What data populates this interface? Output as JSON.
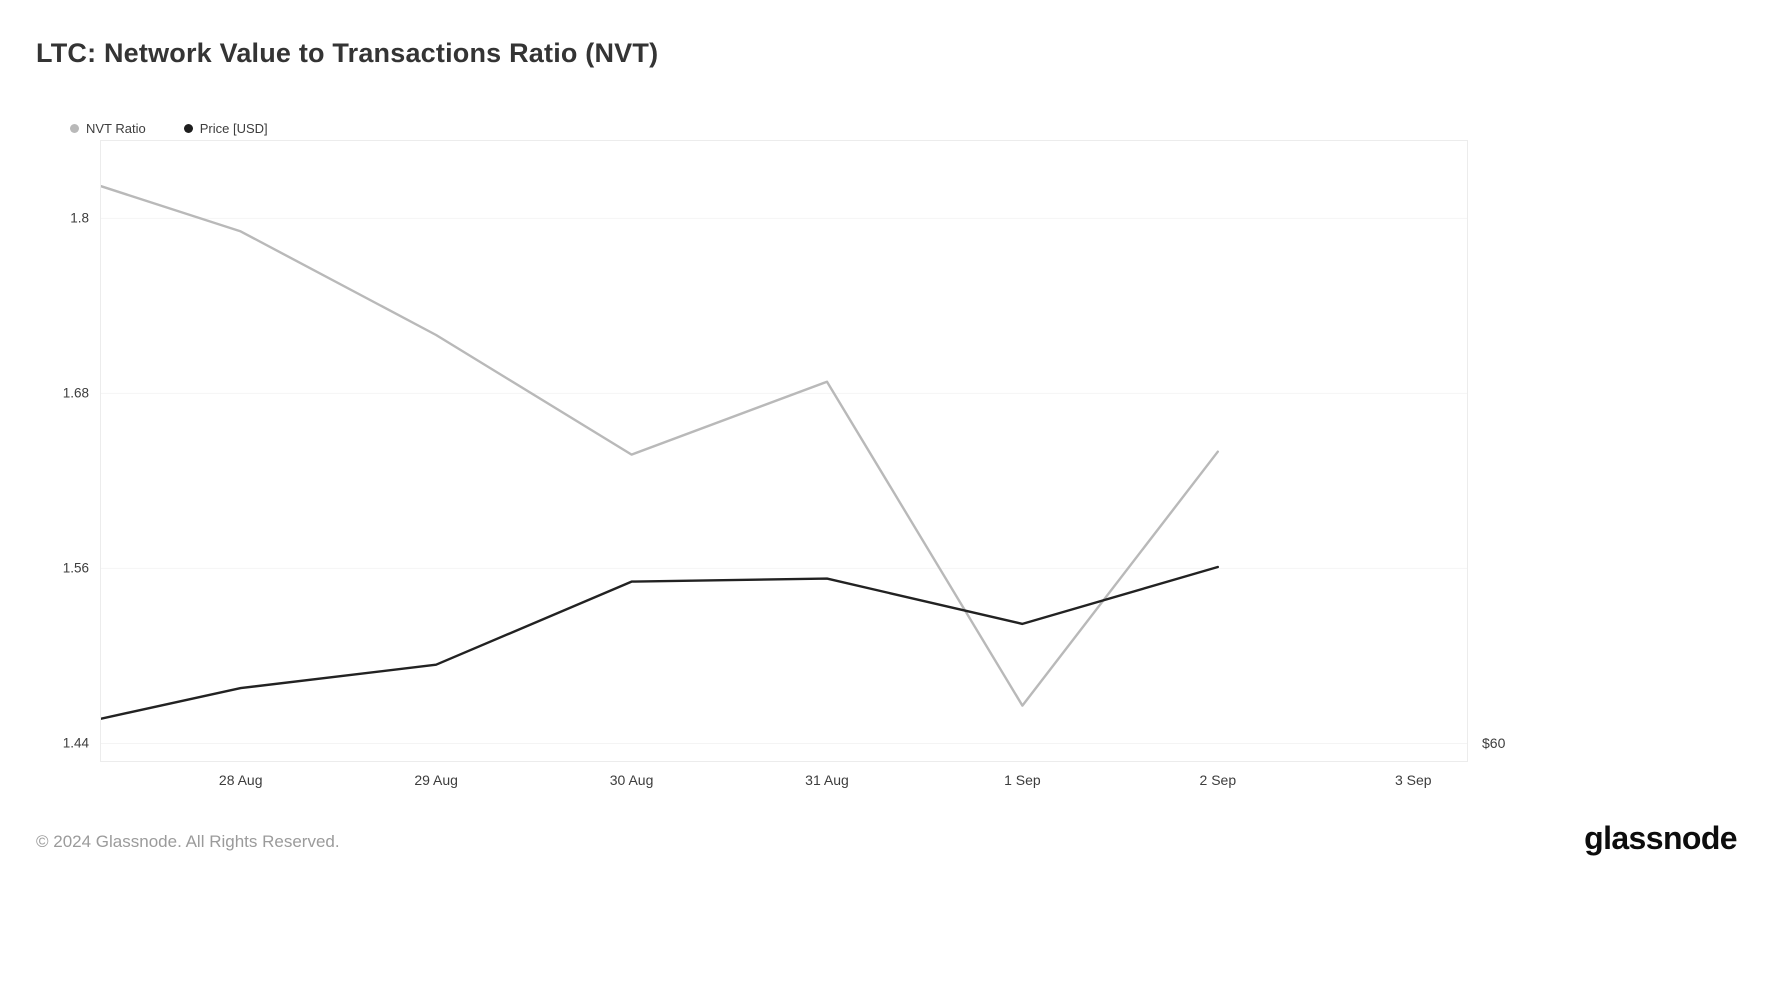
{
  "header": {
    "title": "LTC: Network Value to Transactions Ratio (NVT)"
  },
  "legend": [
    {
      "label": "NVT Ratio",
      "color": "#b9b9b9"
    },
    {
      "label": "Price [USD]",
      "color": "#1e1e1e"
    }
  ],
  "chart_data": {
    "type": "line",
    "title": "LTC: Network Value to Transactions Ratio (NVT)",
    "grid": "horizontal",
    "legend_position": "top-left",
    "x_tick_labels": [
      "28 Aug",
      "29 Aug",
      "30 Aug",
      "31 Aug",
      "1 Sep",
      "2 Sep",
      "3 Sep"
    ],
    "x_tick_positions": [
      0,
      1,
      2,
      3,
      4,
      5,
      6
    ],
    "x_range": [
      -0.715,
      6.275
    ],
    "y_left": {
      "ticks": [
        1.8,
        1.68,
        1.56,
        1.44
      ],
      "range": [
        1.428,
        1.853
      ]
    },
    "y_right": {
      "visible_label": "$60",
      "label_at": 1.44
    },
    "series": [
      {
        "name": "NVT Ratio",
        "axis": "left",
        "color": "#b9b9b9",
        "points": [
          [
            -0.715,
            1.822
          ],
          [
            0,
            1.791
          ],
          [
            1,
            1.72
          ],
          [
            2,
            1.638
          ],
          [
            3,
            1.688
          ],
          [
            4,
            1.466
          ],
          [
            5,
            1.64
          ]
        ]
      },
      {
        "name": "Price [USD]",
        "axis": "right",
        "color": "#222222",
        "value_scale": "left-axis-equivalent",
        "points": [
          [
            -0.715,
            1.457
          ],
          [
            0,
            1.478
          ],
          [
            1,
            1.494
          ],
          [
            2,
            1.551
          ],
          [
            3,
            1.553
          ],
          [
            4,
            1.522
          ],
          [
            5,
            1.561
          ]
        ]
      }
    ]
  },
  "footer": {
    "copyright": "© 2024 Glassnode. All Rights Reserved.",
    "brand": "glassnode"
  }
}
